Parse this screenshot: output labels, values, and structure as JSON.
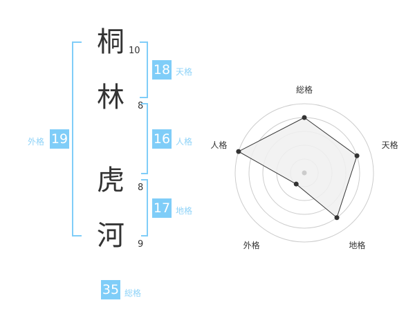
{
  "name_chars": [
    {
      "char": "桐",
      "strokes": "10"
    },
    {
      "char": "林",
      "strokes": "8"
    },
    {
      "char": "虎",
      "strokes": "8"
    },
    {
      "char": "河",
      "strokes": "9"
    }
  ],
  "kaku": {
    "tenkaku": {
      "value": "18",
      "label": "天格"
    },
    "jinkaku": {
      "value": "16",
      "label": "人格"
    },
    "chikaku": {
      "value": "17",
      "label": "地格"
    },
    "gaikaku": {
      "value": "19",
      "label": "外格"
    },
    "soukaku": {
      "value": "35",
      "label": "総格"
    }
  },
  "colors": {
    "accent": "#7fcdf8",
    "polygon_fill": "#f0f0f0",
    "ring": "#cccccc",
    "point": "#333333"
  },
  "chart_data": {
    "type": "radar",
    "categories": [
      "総格",
      "天格",
      "地格",
      "外格",
      "人格"
    ],
    "values": [
      4,
      4,
      4,
      1,
      5
    ],
    "range": [
      0,
      5
    ],
    "grid": true
  }
}
